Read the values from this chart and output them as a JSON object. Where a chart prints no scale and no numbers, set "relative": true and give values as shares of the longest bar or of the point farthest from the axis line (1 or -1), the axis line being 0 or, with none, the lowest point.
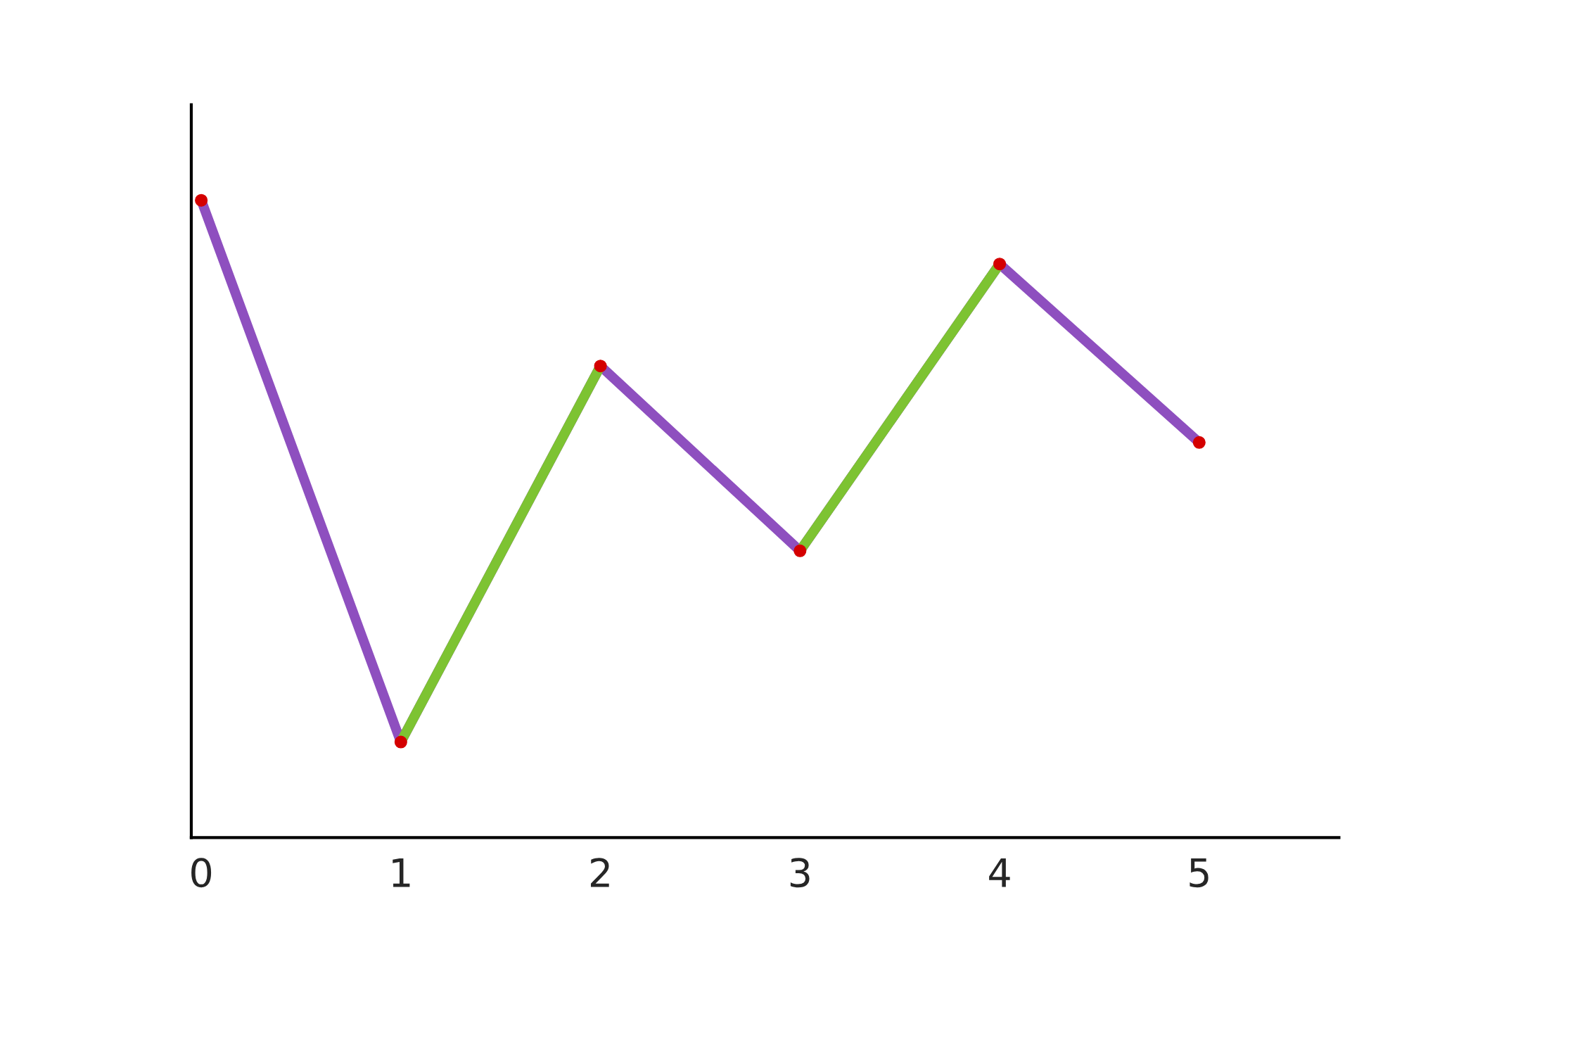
{
  "chart_data": {
    "type": "line",
    "relative": true,
    "categories": [
      "0",
      "1",
      "2",
      "3",
      "4",
      "5"
    ],
    "tick_labels": "x",
    "grid": false,
    "series": [
      {
        "color": "#8e4fbf",
        "values": [
          1,
          0.15,
          0.74,
          0.45,
          0.9,
          0.62
        ]
      },
      {
        "color": "#7dc332",
        "values": [
          null,
          0.15,
          0.74,
          null,
          null,
          null
        ]
      },
      {
        "color": "#7dc332",
        "values": [
          null,
          null,
          null,
          0.45,
          0.9,
          null
        ]
      },
      {
        "type": "scatter",
        "color": "#d40000",
        "marker": "circle",
        "values": [
          1,
          0.15,
          0.74,
          0.45,
          0.9,
          0.62
        ]
      }
    ]
  }
}
